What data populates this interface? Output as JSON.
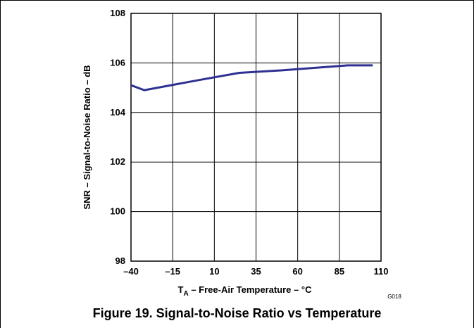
{
  "caption": "Figure 19. Signal-to-Noise Ratio vs Temperature",
  "figure_code": "G018",
  "chart_data": {
    "type": "line",
    "xlabel_sub": "A",
    "xlabel_main": "T",
    "xlabel_rest": " – Free-Air Temperature – °C",
    "ylabel": "SNR – Signal-to-Noise Ratio – dB",
    "xlim": [
      -40,
      110
    ],
    "ylim": [
      98,
      108
    ],
    "x_ticks": [
      -40,
      -15,
      10,
      35,
      60,
      85,
      110
    ],
    "x_tick_labels": [
      "–40",
      "–15",
      "10",
      "35",
      "60",
      "85",
      "110"
    ],
    "y_ticks": [
      98,
      100,
      102,
      104,
      106,
      108
    ],
    "y_tick_labels": [
      "98",
      "100",
      "102",
      "104",
      "106",
      "108"
    ],
    "grid": true,
    "series": [
      {
        "color": "#2e3192",
        "x": [
          -40,
          -32,
          0,
          25,
          50,
          90,
          105
        ],
        "y": [
          105.1,
          104.9,
          105.3,
          105.6,
          105.7,
          105.9,
          105.9
        ]
      }
    ]
  }
}
